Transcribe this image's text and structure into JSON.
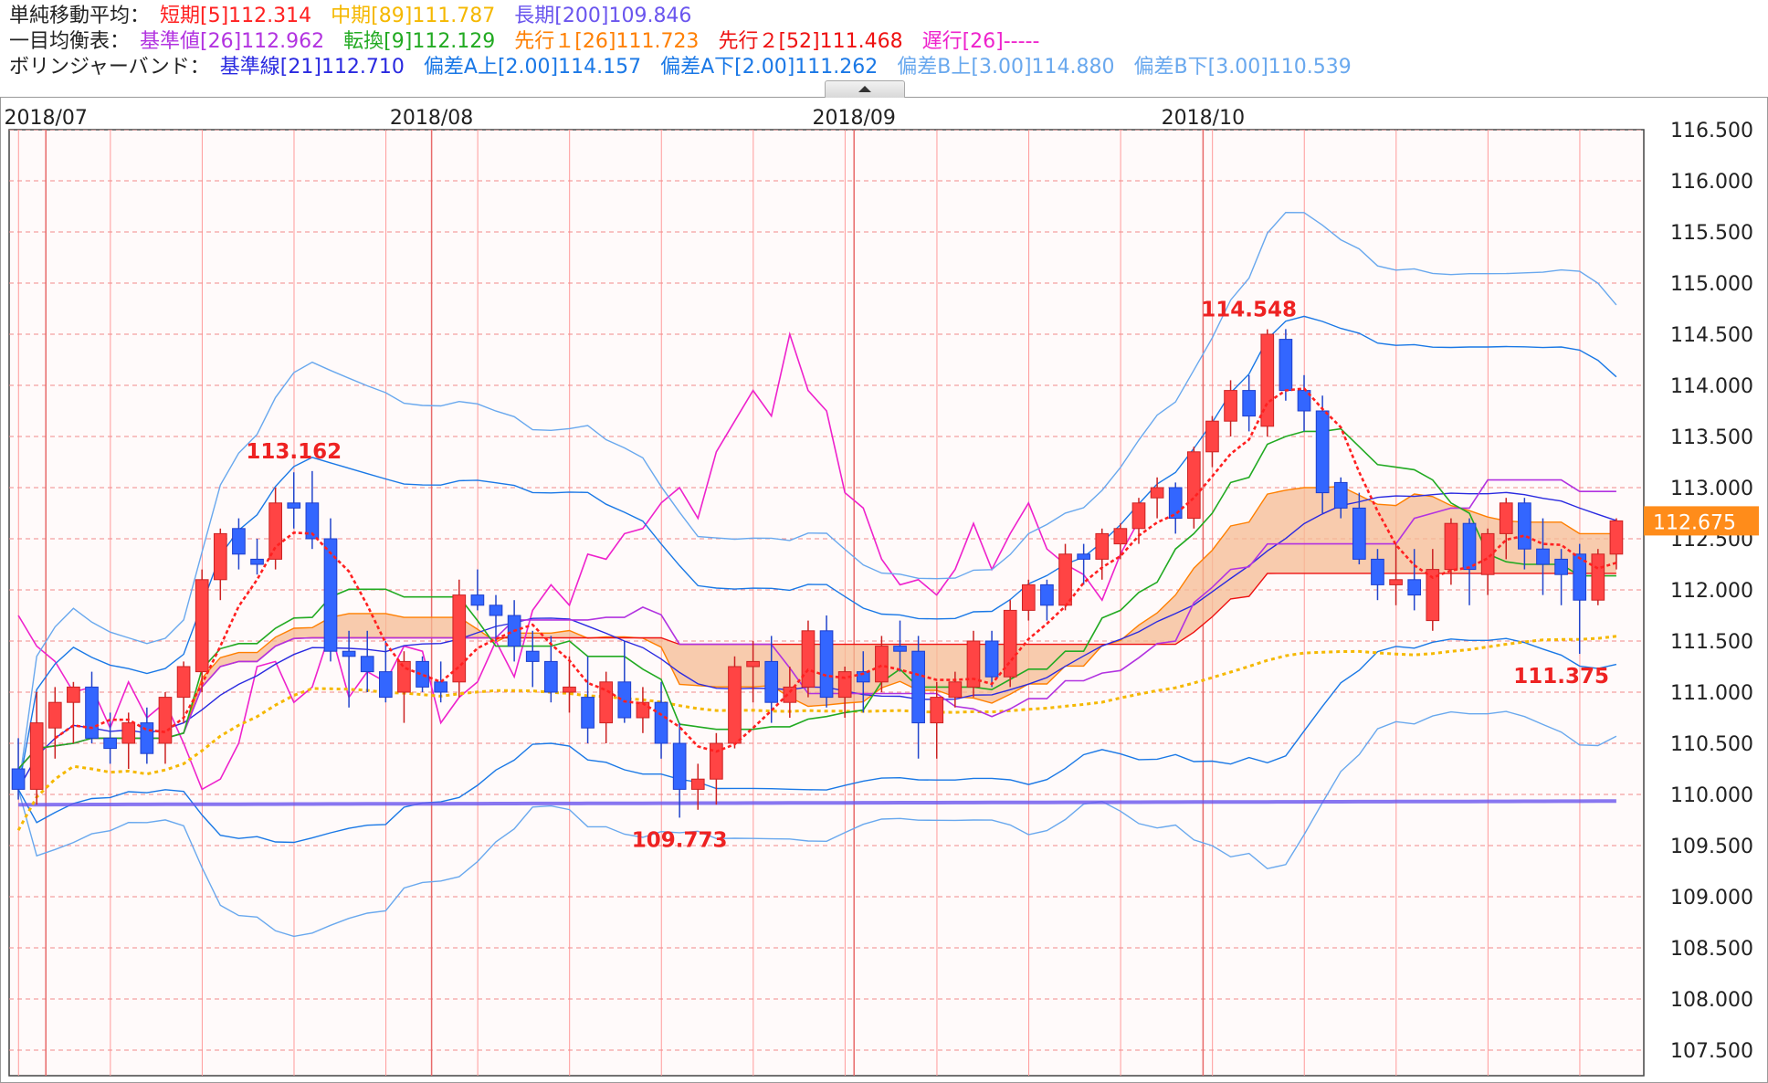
{
  "legend": {
    "sma": {
      "label": "単純移動平均：",
      "items": [
        {
          "text": "短期[5]112.314",
          "color": "#ff2020"
        },
        {
          "text": "中期[89]111.787",
          "color": "#f5b800"
        },
        {
          "text": "長期[200]109.846",
          "color": "#6a55ee"
        }
      ]
    },
    "ichimoku": {
      "label": "一目均衡表：",
      "items": [
        {
          "text": "基準値[26]112.962",
          "color": "#b233e0"
        },
        {
          "text": "転換[9]112.129",
          "color": "#22aa22"
        },
        {
          "text": "先行１[26]111.723",
          "color": "#ff7f00"
        },
        {
          "text": "先行２[52]111.468",
          "color": "#ee1111"
        },
        {
          "text": "遅行[26]-----",
          "color": "#ee22cc"
        }
      ]
    },
    "bollinger": {
      "label": "ボリンジャーバンド：",
      "items": [
        {
          "text": "基準線[21]112.710",
          "color": "#2a2ae0"
        },
        {
          "text": "偏差A上[2.00]114.157",
          "color": "#1a78e6"
        },
        {
          "text": "偏差A下[2.00]111.262",
          "color": "#1a78e6"
        },
        {
          "text": "偏差B上[3.00]114.880",
          "color": "#69a8ee"
        },
        {
          "text": "偏差B下[3.00]110.539",
          "color": "#69a8ee"
        }
      ]
    }
  },
  "colors": {
    "up": "#ff4444",
    "down": "#3366ff",
    "grid_h": "#f08a8a",
    "grid_v": "#ff9a9a",
    "month_line": "#e86a6a",
    "cloud_fill": "#f6bb93",
    "cloud_fill_neg": "#e6e3e3",
    "plot_bg": "#fffafa",
    "label_red": "#ee2222",
    "price_box": "#ff8c1a"
  },
  "chart_data": {
    "type": "candlestick",
    "instrument_note": "",
    "ylim": [
      107.25,
      116.5
    ],
    "y_ticks": [
      "107.500",
      "108.000",
      "108.500",
      "109.000",
      "109.500",
      "110.000",
      "110.500",
      "111.000",
      "111.500",
      "112.000",
      "112.500",
      "113.000",
      "113.500",
      "114.000",
      "114.500",
      "115.000",
      "115.500",
      "116.000",
      "116.500"
    ],
    "x_month_labels": [
      {
        "text": "2018/07",
        "index": 2
      },
      {
        "text": "2018/08",
        "index": 23
      },
      {
        "text": "2018/09",
        "index": 46
      },
      {
        "text": "2018/10",
        "index": 65
      }
    ],
    "current_price": "112.675",
    "annotations": [
      {
        "text": "113.162",
        "index": 15,
        "price": 113.162,
        "pos": "above"
      },
      {
        "text": "109.773",
        "index": 36,
        "price": 109.773,
        "pos": "below"
      },
      {
        "text": "114.548",
        "index": 67,
        "price": 114.548,
        "pos": "above"
      },
      {
        "text": "111.375",
        "index": 84,
        "price": 111.375,
        "pos": "below"
      }
    ],
    "candles": [
      [
        110.25,
        110.55,
        109.95,
        110.05
      ],
      [
        110.05,
        111.0,
        109.9,
        110.7
      ],
      [
        110.65,
        111.05,
        110.35,
        110.9
      ],
      [
        110.9,
        111.1,
        110.5,
        111.05
      ],
      [
        111.05,
        111.2,
        110.5,
        110.55
      ],
      [
        110.55,
        110.8,
        110.3,
        110.45
      ],
      [
        110.5,
        110.8,
        110.25,
        110.7
      ],
      [
        110.7,
        110.85,
        110.3,
        110.4
      ],
      [
        110.5,
        111.0,
        110.3,
        110.95
      ],
      [
        110.95,
        111.3,
        110.7,
        111.25
      ],
      [
        111.2,
        112.2,
        111.0,
        112.1
      ],
      [
        112.1,
        112.6,
        111.9,
        112.55
      ],
      [
        112.6,
        112.7,
        112.2,
        112.35
      ],
      [
        112.3,
        112.5,
        112.15,
        112.25
      ],
      [
        112.3,
        113.0,
        112.2,
        112.85
      ],
      [
        112.85,
        113.15,
        112.6,
        112.8
      ],
      [
        112.85,
        113.162,
        112.4,
        112.5
      ],
      [
        112.5,
        112.7,
        111.3,
        111.4
      ],
      [
        111.4,
        111.6,
        110.85,
        111.35
      ],
      [
        111.35,
        111.6,
        111.0,
        111.2
      ],
      [
        111.2,
        111.5,
        110.9,
        110.95
      ],
      [
        111.0,
        111.4,
        110.7,
        111.3
      ],
      [
        111.3,
        111.35,
        111.0,
        111.05
      ],
      [
        111.1,
        111.3,
        110.9,
        111.0
      ],
      [
        111.1,
        112.1,
        110.95,
        111.95
      ],
      [
        111.95,
        112.2,
        111.8,
        111.85
      ],
      [
        111.85,
        111.95,
        111.5,
        111.75
      ],
      [
        111.75,
        111.9,
        111.3,
        111.45
      ],
      [
        111.4,
        111.6,
        111.05,
        111.3
      ],
      [
        111.3,
        111.55,
        110.9,
        111.0
      ],
      [
        111.0,
        111.35,
        110.8,
        111.05
      ],
      [
        110.95,
        111.35,
        110.5,
        110.65
      ],
      [
        110.7,
        111.2,
        110.5,
        111.1
      ],
      [
        111.1,
        111.5,
        110.7,
        110.75
      ],
      [
        110.75,
        111.05,
        110.6,
        110.9
      ],
      [
        110.9,
        111.1,
        110.35,
        110.5
      ],
      [
        110.5,
        110.7,
        109.773,
        110.05
      ],
      [
        110.05,
        110.3,
        109.85,
        110.15
      ],
      [
        110.15,
        110.6,
        109.9,
        110.5
      ],
      [
        110.5,
        111.35,
        110.45,
        111.25
      ],
      [
        111.25,
        111.5,
        110.9,
        111.3
      ],
      [
        111.3,
        111.55,
        110.7,
        110.9
      ],
      [
        110.9,
        111.25,
        110.75,
        111.05
      ],
      [
        111.05,
        111.7,
        110.95,
        111.6
      ],
      [
        111.6,
        111.75,
        110.85,
        110.95
      ],
      [
        110.95,
        111.25,
        110.75,
        111.2
      ],
      [
        111.2,
        111.4,
        110.8,
        111.1
      ],
      [
        111.1,
        111.55,
        111.0,
        111.45
      ],
      [
        111.45,
        111.7,
        111.2,
        111.4
      ],
      [
        111.4,
        111.55,
        110.35,
        110.7
      ],
      [
        110.7,
        111.1,
        110.35,
        110.95
      ],
      [
        110.95,
        111.2,
        110.85,
        111.1
      ],
      [
        111.05,
        111.6,
        110.95,
        111.5
      ],
      [
        111.5,
        111.6,
        111.05,
        111.15
      ],
      [
        111.15,
        111.9,
        111.05,
        111.8
      ],
      [
        111.8,
        112.1,
        111.7,
        112.05
      ],
      [
        112.05,
        112.1,
        111.7,
        111.85
      ],
      [
        111.85,
        112.45,
        111.8,
        112.35
      ],
      [
        112.35,
        112.45,
        112.05,
        112.3
      ],
      [
        112.3,
        112.6,
        112.1,
        112.55
      ],
      [
        112.45,
        112.65,
        112.3,
        112.6
      ],
      [
        112.6,
        112.9,
        112.45,
        112.85
      ],
      [
        112.9,
        113.1,
        112.7,
        113.0
      ],
      [
        113.0,
        113.05,
        112.55,
        112.7
      ],
      [
        112.7,
        113.4,
        112.6,
        113.35
      ],
      [
        113.35,
        113.7,
        113.2,
        113.65
      ],
      [
        113.65,
        114.05,
        113.5,
        113.95
      ],
      [
        113.95,
        114.1,
        113.55,
        113.7
      ],
      [
        113.6,
        114.548,
        113.5,
        114.5
      ],
      [
        114.45,
        114.55,
        113.85,
        113.95
      ],
      [
        113.95,
        114.1,
        113.55,
        113.75
      ],
      [
        113.75,
        113.9,
        112.75,
        112.95
      ],
      [
        113.05,
        113.1,
        112.7,
        112.8
      ],
      [
        112.8,
        112.95,
        112.25,
        112.3
      ],
      [
        112.3,
        112.4,
        111.9,
        112.05
      ],
      [
        112.05,
        112.45,
        111.85,
        112.1
      ],
      [
        112.1,
        112.4,
        111.8,
        111.95
      ],
      [
        111.7,
        112.4,
        111.6,
        112.2
      ],
      [
        112.2,
        112.7,
        112.05,
        112.65
      ],
      [
        112.65,
        112.7,
        111.85,
        112.2
      ],
      [
        112.15,
        112.6,
        111.95,
        112.55
      ],
      [
        112.55,
        112.9,
        112.3,
        112.85
      ],
      [
        112.85,
        112.9,
        112.2,
        112.4
      ],
      [
        112.4,
        112.7,
        111.95,
        112.25
      ],
      [
        112.3,
        112.4,
        111.85,
        112.15
      ],
      [
        112.35,
        112.45,
        111.375,
        111.9
      ],
      [
        111.9,
        112.4,
        111.85,
        112.35
      ],
      [
        112.35,
        112.7,
        112.2,
        112.675
      ]
    ]
  }
}
